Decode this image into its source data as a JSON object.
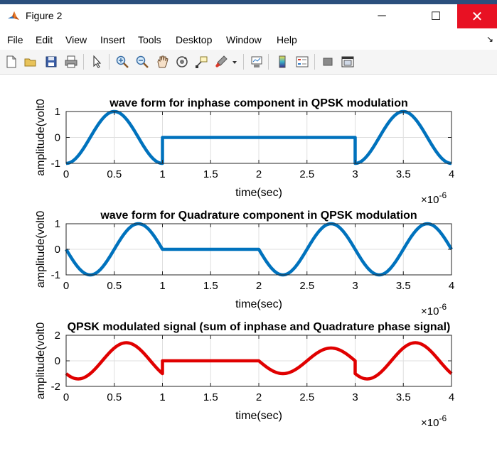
{
  "window": {
    "title": "Figure 2",
    "min_label": "─",
    "max_label": "☐",
    "close_label": "✕"
  },
  "menu": {
    "items": [
      "File",
      "Edit",
      "View",
      "Insert",
      "Tools",
      "Desktop",
      "Window",
      "Help"
    ]
  },
  "toolbar": {
    "icons": [
      "new-figure-icon",
      "open-file-icon",
      "save-icon",
      "print-icon",
      "pointer-icon",
      "zoom-in-icon",
      "zoom-out-icon",
      "pan-icon",
      "rotate-3d-icon",
      "data-cursor-icon",
      "brush-icon",
      "brush-dropdown-icon",
      "link-plot-icon",
      "colorbar-icon",
      "legend-icon",
      "hide-plot-tools-icon",
      "show-plot-tools-icon"
    ]
  },
  "colors": {
    "series_blue": "#0072bd",
    "series_red": "#e00000",
    "grid": "#dfdfdf",
    "axis": "#262626"
  },
  "chart_data": [
    {
      "type": "line",
      "title": "wave form for inphase component in QPSK modulation",
      "xlabel": "time(sec)",
      "ylabel": "amplitude(volt0",
      "exponent_base": "×10",
      "exponent_power": "-6",
      "xlim": [
        0,
        4
      ],
      "ylim": [
        -1,
        1
      ],
      "xticks": [
        "0",
        "0.5",
        "1",
        "1.5",
        "2",
        "2.5",
        "3",
        "3.5",
        "4"
      ],
      "yticks": [
        "1",
        "0",
        "-1"
      ],
      "grid": true,
      "color": "#0072bd",
      "x_unit": "×1e-6 s",
      "segments": [
        {
          "x_start": 0,
          "x_end": 1,
          "waveform": "-cos(2*pi*t)"
        },
        {
          "x_start": 1,
          "x_end": 3,
          "waveform": "0"
        },
        {
          "x_start": 3,
          "x_end": 4,
          "waveform": "-cos(2*pi*t)"
        }
      ],
      "key_points": [
        [
          0,
          -1
        ],
        [
          0.5,
          1
        ],
        [
          1,
          -1
        ],
        [
          1,
          0
        ],
        [
          3,
          0
        ],
        [
          3,
          -1
        ],
        [
          3.5,
          1
        ],
        [
          4,
          -1
        ]
      ]
    },
    {
      "type": "line",
      "title": "wave form for Quadrature component in QPSK modulation",
      "xlabel": "time(sec)",
      "ylabel": "amplitude(volt0",
      "exponent_base": "×10",
      "exponent_power": "-6",
      "xlim": [
        0,
        4
      ],
      "ylim": [
        -1,
        1
      ],
      "xticks": [
        "0",
        "0.5",
        "1",
        "1.5",
        "2",
        "2.5",
        "3",
        "3.5",
        "4"
      ],
      "yticks": [
        "1",
        "0",
        "-1"
      ],
      "grid": true,
      "color": "#0072bd",
      "x_unit": "×1e-6 s",
      "segments": [
        {
          "x_start": 0,
          "x_end": 1,
          "waveform": "-sin(2*pi*t)"
        },
        {
          "x_start": 1,
          "x_end": 2,
          "waveform": "0"
        },
        {
          "x_start": 2,
          "x_end": 4,
          "waveform": "-sin(2*pi*t)"
        }
      ],
      "key_points": [
        [
          0,
          0
        ],
        [
          0.25,
          -1
        ],
        [
          0.75,
          1
        ],
        [
          1,
          0
        ],
        [
          2,
          0
        ],
        [
          2.25,
          -1
        ],
        [
          2.75,
          1
        ],
        [
          3.25,
          -1
        ],
        [
          3.75,
          1
        ],
        [
          4,
          0
        ]
      ]
    },
    {
      "type": "line",
      "title": "QPSK modulated signal (sum of inphase and Quadrature phase signal)",
      "xlabel": "time(sec)",
      "ylabel": "amplitude(volt0",
      "exponent_base": "×10",
      "exponent_power": "-6",
      "xlim": [
        0,
        4
      ],
      "ylim": [
        -2,
        2
      ],
      "xticks": [
        "0",
        "0.5",
        "1",
        "1.5",
        "2",
        "2.5",
        "3",
        "3.5",
        "4"
      ],
      "yticks": [
        "2",
        "0",
        "-2"
      ],
      "grid": true,
      "color": "#e00000",
      "x_unit": "×1e-6 s",
      "segments": [
        {
          "x_start": 0,
          "x_end": 1,
          "waveform": "-cos(2*pi*t)-sin(2*pi*t)"
        },
        {
          "x_start": 1,
          "x_end": 2,
          "waveform": "0"
        },
        {
          "x_start": 2,
          "x_end": 3,
          "waveform": "-sin(2*pi*t)"
        },
        {
          "x_start": 3,
          "x_end": 4,
          "waveform": "-cos(2*pi*t)-sin(2*pi*t)"
        }
      ],
      "key_points": [
        [
          0,
          -1
        ],
        [
          0.125,
          -1.41
        ],
        [
          0.625,
          1.41
        ],
        [
          1,
          -1
        ],
        [
          1,
          0
        ],
        [
          2,
          0
        ],
        [
          2.25,
          -1
        ],
        [
          2.75,
          1
        ],
        [
          3,
          0
        ],
        [
          3,
          -1
        ],
        [
          3.125,
          -1.41
        ],
        [
          3.625,
          1.41
        ],
        [
          4,
          -1
        ]
      ]
    }
  ]
}
